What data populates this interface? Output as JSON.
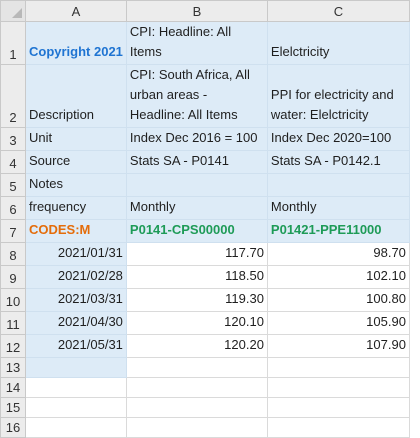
{
  "columns": [
    "A",
    "B",
    "C"
  ],
  "rows": [
    {
      "num": "1",
      "a": "Copyright 2021",
      "b": "CPI: Headline: All Items",
      "c": "Elelctricity"
    },
    {
      "num": "2",
      "a": "Description",
      "b": "CPI: South Africa, All urban areas - Headline: All Items",
      "c": "PPI for electricity and water: Elelctricity"
    },
    {
      "num": "3",
      "a": "Unit",
      "b": "Index Dec 2016 = 100",
      "c": "Index Dec 2020=100"
    },
    {
      "num": "4",
      "a": "Source",
      "b": "Stats SA - P0141",
      "c": "Stats SA - P0142.1"
    },
    {
      "num": "5",
      "a": "Notes",
      "b": "",
      "c": ""
    },
    {
      "num": "6",
      "a": "frequency",
      "b": "Monthly",
      "c": "Monthly"
    },
    {
      "num": "7",
      "a": "CODES:M",
      "b": "P0141-CPS00000",
      "c": "P01421-PPE11000"
    },
    {
      "num": "8",
      "a": "2021/01/31",
      "b": "117.70",
      "c": "98.70"
    },
    {
      "num": "9",
      "a": "2021/02/28",
      "b": "118.50",
      "c": "102.10"
    },
    {
      "num": "10",
      "a": "2021/03/31",
      "b": "119.30",
      "c": "100.80"
    },
    {
      "num": "11",
      "a": "2021/04/30",
      "b": "120.10",
      "c": "105.90"
    },
    {
      "num": "12",
      "a": "2021/05/31",
      "b": "120.20",
      "c": "107.90"
    },
    {
      "num": "13",
      "a": "",
      "b": "",
      "c": ""
    },
    {
      "num": "14",
      "a": "",
      "b": "",
      "c": ""
    },
    {
      "num": "15",
      "a": "",
      "b": "",
      "c": ""
    },
    {
      "num": "16",
      "a": "",
      "b": "",
      "c": ""
    }
  ]
}
